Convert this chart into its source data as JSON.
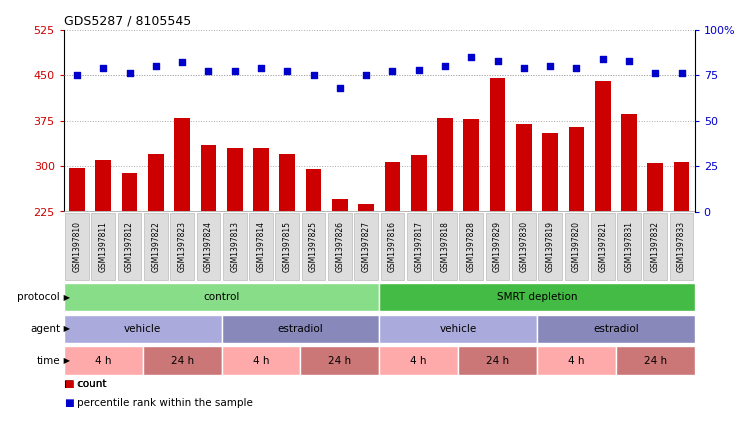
{
  "title": "GDS5287 / 8105545",
  "samples": [
    "GSM1397810",
    "GSM1397811",
    "GSM1397812",
    "GSM1397822",
    "GSM1397823",
    "GSM1397824",
    "GSM1397813",
    "GSM1397814",
    "GSM1397815",
    "GSM1397825",
    "GSM1397826",
    "GSM1397827",
    "GSM1397816",
    "GSM1397817",
    "GSM1397818",
    "GSM1397828",
    "GSM1397829",
    "GSM1397830",
    "GSM1397819",
    "GSM1397820",
    "GSM1397821",
    "GSM1397831",
    "GSM1397832",
    "GSM1397833"
  ],
  "counts": [
    297,
    310,
    288,
    320,
    380,
    335,
    330,
    330,
    320,
    295,
    245,
    238,
    307,
    318,
    380,
    377,
    445,
    370,
    355,
    365,
    440,
    385,
    305,
    307
  ],
  "percentiles": [
    75,
    79,
    76,
    80,
    82,
    77,
    77,
    79,
    77,
    75,
    68,
    75,
    77,
    78,
    80,
    85,
    83,
    79,
    80,
    79,
    84,
    83,
    76,
    76
  ],
  "ylim_left": [
    225,
    525
  ],
  "ylim_right": [
    0,
    100
  ],
  "yticks_left": [
    225,
    300,
    375,
    450,
    525
  ],
  "yticks_right": [
    0,
    25,
    50,
    75,
    100
  ],
  "bar_color": "#cc0000",
  "dot_color": "#0000cc",
  "grid_color": "#aaaaaa",
  "bg_color": "#ffffff",
  "protocol_ranges": [
    [
      0,
      12,
      "control"
    ],
    [
      12,
      24,
      "SMRT depletion"
    ]
  ],
  "agent_ranges": [
    [
      0,
      6,
      "vehicle"
    ],
    [
      6,
      12,
      "estradiol"
    ],
    [
      12,
      18,
      "vehicle"
    ],
    [
      18,
      24,
      "estradiol"
    ]
  ],
  "time_ranges": [
    [
      0,
      3,
      "4 h"
    ],
    [
      3,
      6,
      "24 h"
    ],
    [
      6,
      9,
      "4 h"
    ],
    [
      9,
      12,
      "24 h"
    ],
    [
      12,
      15,
      "4 h"
    ],
    [
      15,
      18,
      "24 h"
    ],
    [
      18,
      21,
      "4 h"
    ],
    [
      21,
      24,
      "24 h"
    ]
  ],
  "proto_colors": {
    "control": "#88dd88",
    "SMRT depletion": "#44bb44"
  },
  "agent_colors": {
    "vehicle": "#aaaadd",
    "estradiol": "#8888bb"
  },
  "time_colors_map": {
    "4 h": "#ffaaaa",
    "24 h": "#cc7777"
  },
  "legend_items": [
    [
      "count",
      "#cc0000"
    ],
    [
      "percentile rank within the sample",
      "#0000cc"
    ]
  ]
}
